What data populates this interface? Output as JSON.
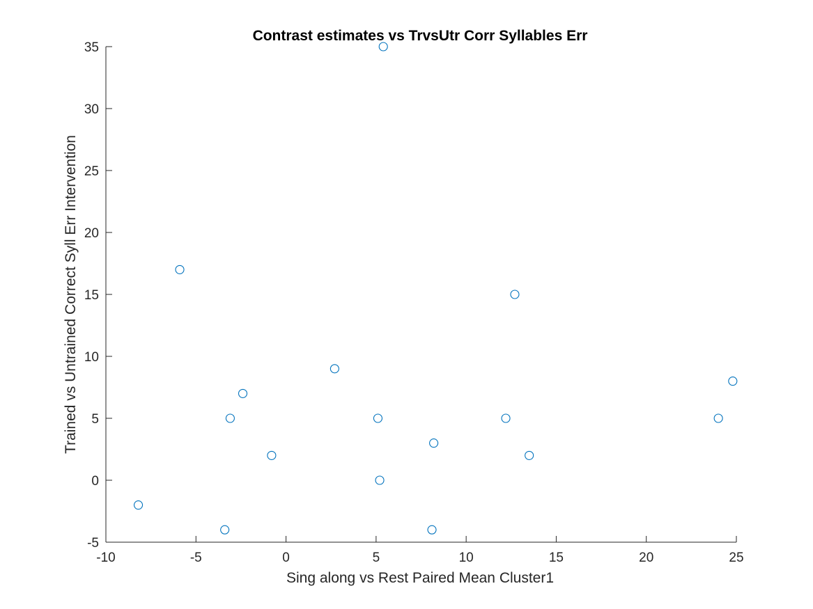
{
  "chart_data": {
    "type": "scatter",
    "title": "Contrast estimates vs TrvsUtr Corr Syllables Err",
    "xlabel": "Sing along vs Rest Paired Mean Cluster1",
    "ylabel": "Trained vs Untrained Correct Syll Err Intervention",
    "xlim": [
      -10,
      25
    ],
    "ylim": [
      -5,
      35
    ],
    "xticks": [
      -10,
      -5,
      0,
      5,
      10,
      15,
      20,
      25
    ],
    "yticks": [
      -5,
      0,
      5,
      10,
      15,
      20,
      25,
      30,
      35
    ],
    "grid": false,
    "marker": "open-circle",
    "marker_color": "#0072BD",
    "axis_color": "#262626",
    "points": [
      {
        "x": 5.4,
        "y": 35
      },
      {
        "x": -5.9,
        "y": 17
      },
      {
        "x": 12.7,
        "y": 15
      },
      {
        "x": 2.7,
        "y": 9
      },
      {
        "x": 24.8,
        "y": 8
      },
      {
        "x": -2.4,
        "y": 7
      },
      {
        "x": -3.1,
        "y": 5
      },
      {
        "x": 5.1,
        "y": 5
      },
      {
        "x": 12.2,
        "y": 5
      },
      {
        "x": 24.0,
        "y": 5
      },
      {
        "x": 8.2,
        "y": 3
      },
      {
        "x": -0.8,
        "y": 2
      },
      {
        "x": 13.5,
        "y": 2
      },
      {
        "x": 5.2,
        "y": 0
      },
      {
        "x": -8.2,
        "y": -2
      },
      {
        "x": -3.4,
        "y": -4
      },
      {
        "x": 8.1,
        "y": -4
      }
    ]
  }
}
